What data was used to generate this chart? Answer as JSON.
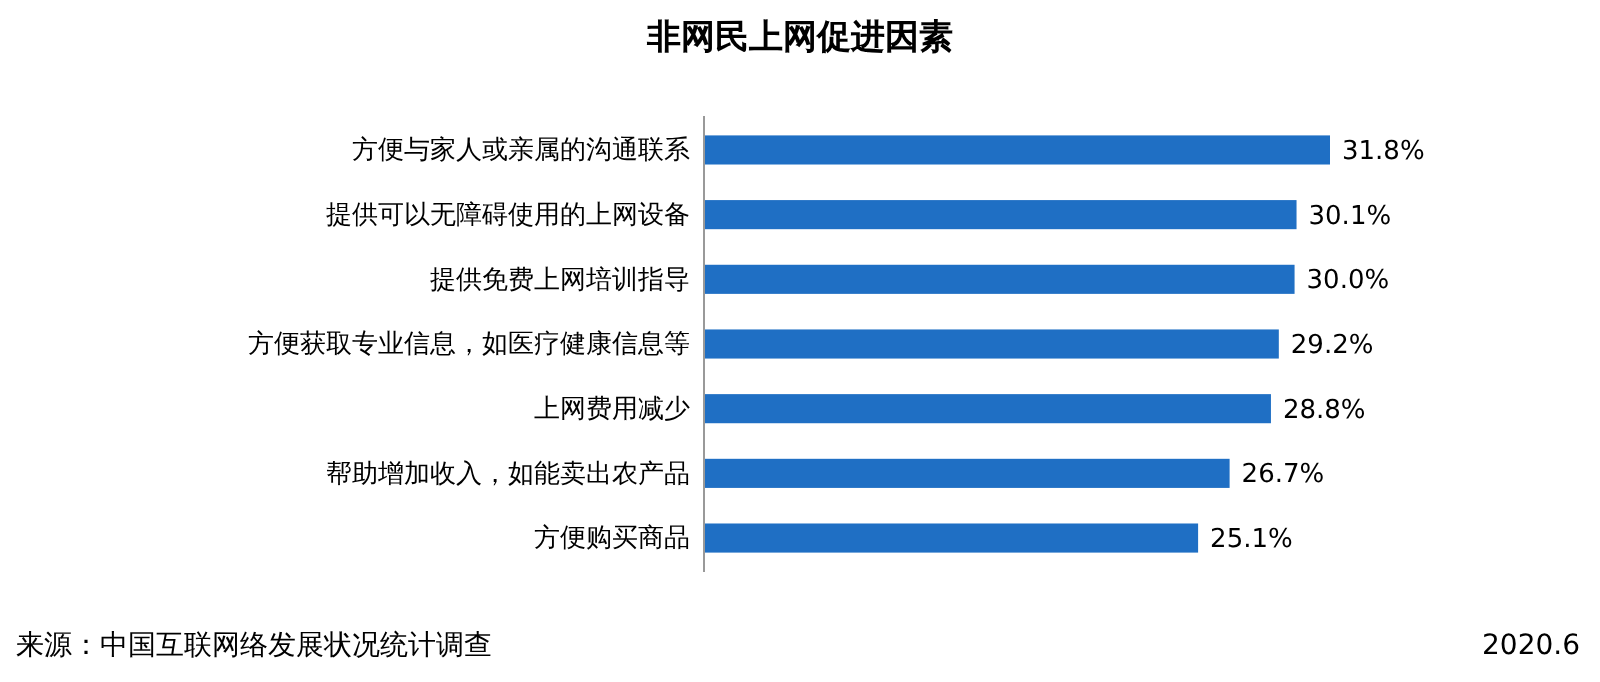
{
  "chart_data": {
    "type": "bar",
    "orientation": "horizontal",
    "title": "非网民上网促进因素",
    "categories": [
      "方便与家人或亲属的沟通联系",
      "提供可以无障碍使用的上网设备",
      "提供免费上网培训指导",
      "方便获取专业信息，如医疗健康信息等",
      "上网费用减少",
      "帮助增加收入，如能卖出农产品",
      "方便购买商品"
    ],
    "values": [
      31.8,
      30.1,
      30.0,
      29.2,
      28.8,
      26.7,
      25.1
    ],
    "value_labels": [
      "31.8%",
      "30.1%",
      "30.0%",
      "29.2%",
      "28.8%",
      "26.7%",
      "25.1%"
    ],
    "color": "#1f6fc4",
    "annotations": [
      "来源：中国互联网络发展状况统计调查",
      "2020.6"
    ]
  }
}
